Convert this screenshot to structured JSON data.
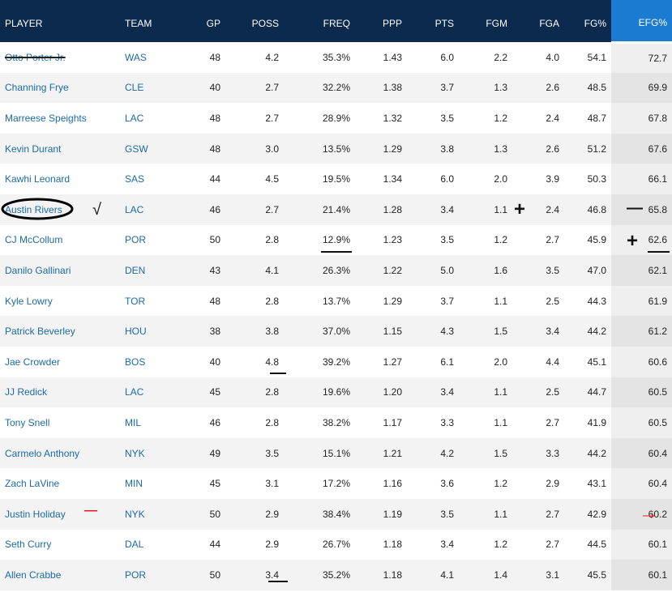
{
  "columns": [
    {
      "key": "player",
      "label": "PLAYER"
    },
    {
      "key": "team",
      "label": "TEAM"
    },
    {
      "key": "gp",
      "label": "GP"
    },
    {
      "key": "poss",
      "label": "POSS"
    },
    {
      "key": "freq",
      "label": "FREQ"
    },
    {
      "key": "ppp",
      "label": "PPP"
    },
    {
      "key": "pts",
      "label": "PTS"
    },
    {
      "key": "fgm",
      "label": "FGM"
    },
    {
      "key": "fga",
      "label": "FGA"
    },
    {
      "key": "fgpct",
      "label": "FG%"
    },
    {
      "key": "efg",
      "label": "EFG%"
    }
  ],
  "rows": [
    {
      "player": "Otto Porter Jr.",
      "team": "WAS",
      "gp": "48",
      "poss": "4.2",
      "freq": "35.3%",
      "ppp": "1.43",
      "pts": "6.0",
      "fgm": "2.2",
      "fga": "4.0",
      "fgpct": "54.1",
      "efg": "72.7"
    },
    {
      "player": "Channing Frye",
      "team": "CLE",
      "gp": "40",
      "poss": "2.7",
      "freq": "32.2%",
      "ppp": "1.38",
      "pts": "3.7",
      "fgm": "1.3",
      "fga": "2.6",
      "fgpct": "48.5",
      "efg": "69.9"
    },
    {
      "player": "Marreese Speights",
      "team": "LAC",
      "gp": "48",
      "poss": "2.7",
      "freq": "28.9%",
      "ppp": "1.32",
      "pts": "3.5",
      "fgm": "1.2",
      "fga": "2.4",
      "fgpct": "48.7",
      "efg": "67.8"
    },
    {
      "player": "Kevin Durant",
      "team": "GSW",
      "gp": "48",
      "poss": "3.0",
      "freq": "13.5%",
      "ppp": "1.29",
      "pts": "3.8",
      "fgm": "1.3",
      "fga": "2.6",
      "fgpct": "51.2",
      "efg": "67.6"
    },
    {
      "player": "Kawhi Leonard",
      "team": "SAS",
      "gp": "44",
      "poss": "4.5",
      "freq": "19.5%",
      "ppp": "1.34",
      "pts": "6.0",
      "fgm": "2.0",
      "fga": "3.9",
      "fgpct": "50.3",
      "efg": "66.1"
    },
    {
      "player": "Austin Rivers",
      "team": "LAC",
      "gp": "46",
      "poss": "2.7",
      "freq": "21.4%",
      "ppp": "1.28",
      "pts": "3.4",
      "fgm": "1.1",
      "fga": "2.4",
      "fgpct": "46.8",
      "efg": "65.8"
    },
    {
      "player": "CJ McCollum",
      "team": "POR",
      "gp": "50",
      "poss": "2.8",
      "freq": "12.9%",
      "ppp": "1.23",
      "pts": "3.5",
      "fgm": "1.2",
      "fga": "2.7",
      "fgpct": "45.9",
      "efg": "62.6"
    },
    {
      "player": "Danilo Gallinari",
      "team": "DEN",
      "gp": "43",
      "poss": "4.1",
      "freq": "26.3%",
      "ppp": "1.22",
      "pts": "5.0",
      "fgm": "1.6",
      "fga": "3.5",
      "fgpct": "47.0",
      "efg": "62.1"
    },
    {
      "player": "Kyle Lowry",
      "team": "TOR",
      "gp": "48",
      "poss": "2.8",
      "freq": "13.7%",
      "ppp": "1.29",
      "pts": "3.7",
      "fgm": "1.1",
      "fga": "2.5",
      "fgpct": "44.3",
      "efg": "61.9"
    },
    {
      "player": "Patrick Beverley",
      "team": "HOU",
      "gp": "38",
      "poss": "3.8",
      "freq": "37.0%",
      "ppp": "1.15",
      "pts": "4.3",
      "fgm": "1.5",
      "fga": "3.4",
      "fgpct": "44.2",
      "efg": "61.2"
    },
    {
      "player": "Jae Crowder",
      "team": "BOS",
      "gp": "40",
      "poss": "4.8",
      "freq": "39.2%",
      "ppp": "1.27",
      "pts": "6.1",
      "fgm": "2.0",
      "fga": "4.4",
      "fgpct": "45.1",
      "efg": "60.6"
    },
    {
      "player": "JJ Redick",
      "team": "LAC",
      "gp": "45",
      "poss": "2.8",
      "freq": "19.6%",
      "ppp": "1.20",
      "pts": "3.4",
      "fgm": "1.1",
      "fga": "2.5",
      "fgpct": "44.7",
      "efg": "60.5"
    },
    {
      "player": "Tony Snell",
      "team": "MIL",
      "gp": "46",
      "poss": "2.8",
      "freq": "38.2%",
      "ppp": "1.17",
      "pts": "3.3",
      "fgm": "1.1",
      "fga": "2.7",
      "fgpct": "41.9",
      "efg": "60.5"
    },
    {
      "player": "Carmelo Anthony",
      "team": "NYK",
      "gp": "49",
      "poss": "3.5",
      "freq": "15.1%",
      "ppp": "1.21",
      "pts": "4.2",
      "fgm": "1.5",
      "fga": "3.3",
      "fgpct": "44.2",
      "efg": "60.4"
    },
    {
      "player": "Zach LaVine",
      "team": "MIN",
      "gp": "45",
      "poss": "3.1",
      "freq": "17.2%",
      "ppp": "1.16",
      "pts": "3.6",
      "fgm": "1.2",
      "fga": "2.9",
      "fgpct": "43.1",
      "efg": "60.4"
    },
    {
      "player": "Justin Holiday",
      "team": "NYK",
      "gp": "50",
      "poss": "2.9",
      "freq": "38.4%",
      "ppp": "1.19",
      "pts": "3.5",
      "fgm": "1.1",
      "fga": "2.7",
      "fgpct": "42.9",
      "efg": "60.2"
    },
    {
      "player": "Seth Curry",
      "team": "DAL",
      "gp": "44",
      "poss": "2.9",
      "freq": "26.7%",
      "ppp": "1.18",
      "pts": "3.4",
      "fgm": "1.2",
      "fga": "2.7",
      "fgpct": "44.5",
      "efg": "60.1"
    },
    {
      "player": "Allen Crabbe",
      "team": "POR",
      "gp": "50",
      "poss": "3.4",
      "freq": "35.2%",
      "ppp": "1.18",
      "pts": "4.1",
      "fgm": "1.4",
      "fga": "3.1",
      "fgpct": "45.5",
      "efg": "60.1"
    }
  ],
  "annotations": {
    "check_mark": "√",
    "plus_1": "+",
    "minus_1": "—",
    "plus_2": "+",
    "red_minus": "—",
    "red_arrow": "→"
  },
  "colors": {
    "header_bg": "#0c2a4d",
    "sorted_header_bg": "#1a7bd1",
    "link": "#1d6aa5",
    "annotation_red": "#e02020"
  }
}
